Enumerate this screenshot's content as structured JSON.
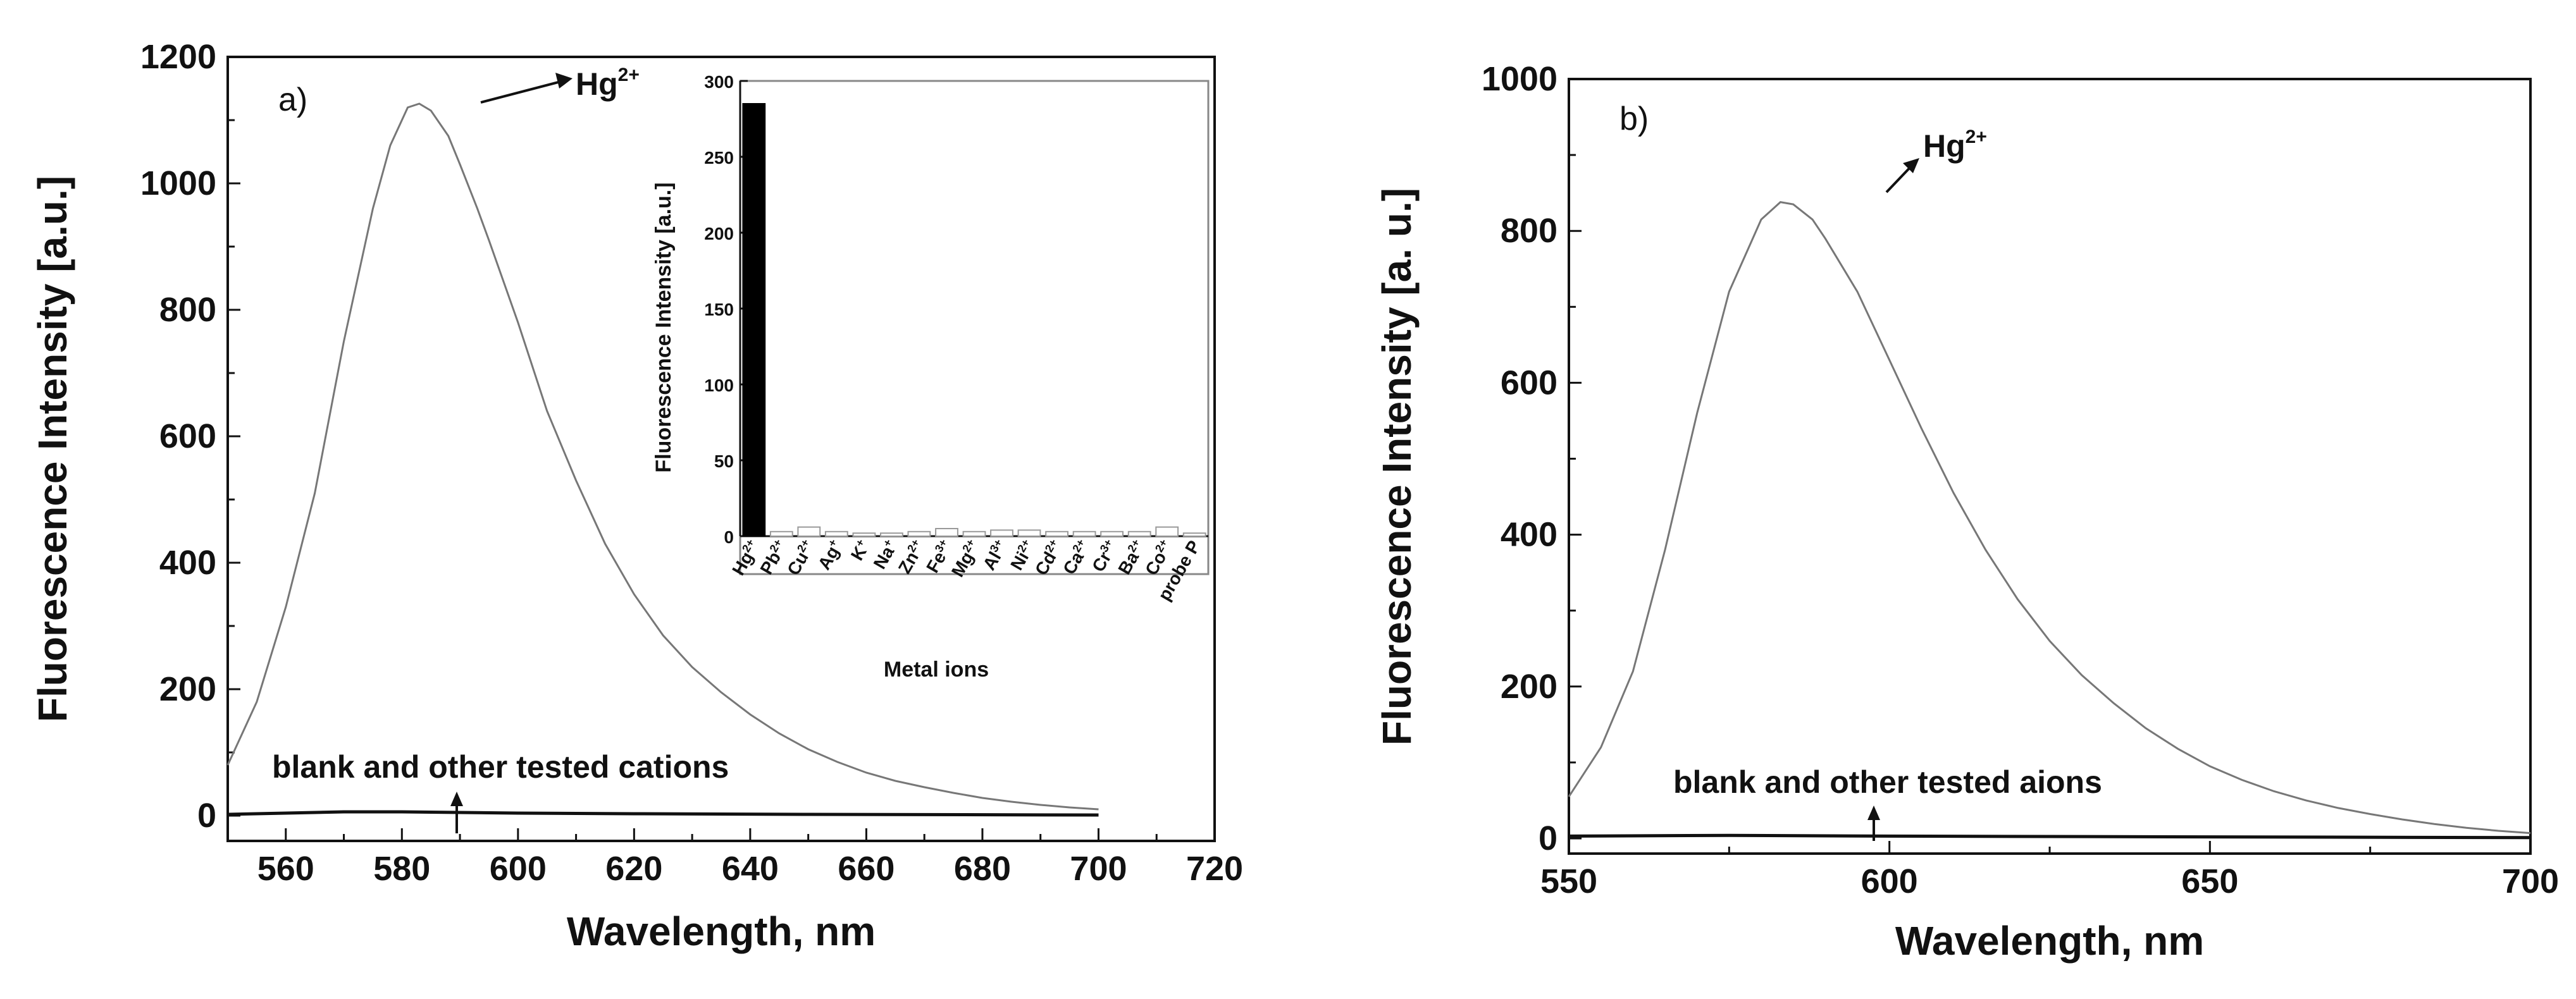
{
  "chart_data": [
    {
      "type": "line",
      "panel_label": "a)",
      "xlabel": "Wavelength, nm",
      "ylabel": "Fluorescence Intensity [a.u.]",
      "xlim": [
        550,
        720
      ],
      "ylim": [
        -40,
        1200
      ],
      "xticks": [
        560,
        580,
        600,
        620,
        640,
        660,
        680,
        700,
        720
      ],
      "yticks": [
        0,
        200,
        400,
        600,
        800,
        1000,
        1200
      ],
      "series": [
        {
          "name": "Hg2+",
          "x": [
            550,
            555,
            560,
            565,
            570,
            575,
            578,
            581,
            583,
            585,
            588,
            590,
            593,
            595,
            600,
            605,
            610,
            615,
            620,
            625,
            630,
            635,
            640,
            645,
            650,
            655,
            660,
            665,
            670,
            675,
            680,
            685,
            690,
            695,
            700
          ],
          "y": [
            80,
            180,
            330,
            510,
            750,
            960,
            1060,
            1120,
            1126,
            1115,
            1075,
            1030,
            960,
            910,
            780,
            640,
            530,
            430,
            350,
            285,
            235,
            195,
            160,
            130,
            105,
            85,
            68,
            55,
            45,
            36,
            28,
            22,
            17,
            13,
            10
          ]
        },
        {
          "name": "blank and other tested cations",
          "x": [
            550,
            560,
            570,
            580,
            590,
            600,
            620,
            650,
            700
          ],
          "y": [
            2,
            4,
            6,
            6,
            5,
            4,
            3,
            2,
            1
          ]
        }
      ],
      "annotations": {
        "peak_label": {
          "base": "Hg",
          "sup": "2+"
        },
        "baseline_label": "blank and other tested cations"
      },
      "inset": {
        "type": "bar",
        "xlabel": "Metal ions",
        "ylabel": "Fluorescence Intensity [a.u.]",
        "ylim": [
          0,
          300
        ],
        "yticks": [
          0,
          50,
          100,
          150,
          200,
          250,
          300
        ],
        "categories": [
          {
            "base": "Hg",
            "sup": "2+"
          },
          {
            "base": "Pb",
            "sup": "2+"
          },
          {
            "base": "Cu",
            "sup": "2+"
          },
          {
            "base": "Ag",
            "sup": "+"
          },
          {
            "base": "K",
            "sup": "+"
          },
          {
            "base": "Na",
            "sup": "+"
          },
          {
            "base": "Zn",
            "sup": "2+"
          },
          {
            "base": "Fe",
            "sup": "3+"
          },
          {
            "base": "Mg",
            "sup": "2+"
          },
          {
            "base": "Al",
            "sup": "3+"
          },
          {
            "base": "Ni",
            "sup": "2+"
          },
          {
            "base": "Cd",
            "sup": "2+"
          },
          {
            "base": "Ca",
            "sup": "2+"
          },
          {
            "base": "Cr",
            "sup": "3+"
          },
          {
            "base": "Ba",
            "sup": "2+"
          },
          {
            "base": "Co",
            "sup": "2+"
          },
          {
            "base": "probe P",
            "sup": ""
          }
        ],
        "values": [
          285,
          3,
          6,
          3,
          2,
          2,
          3,
          5,
          3,
          4,
          4,
          3,
          3,
          3,
          3,
          6,
          2
        ]
      }
    },
    {
      "type": "line",
      "panel_label": "b)",
      "xlabel": "Wavelength, nm",
      "ylabel": "Fluorescence Intensity [a. u.]",
      "xlim": [
        550,
        700
      ],
      "ylim": [
        -20,
        1000
      ],
      "xticks": [
        550,
        600,
        650,
        700
      ],
      "yticks": [
        0,
        200,
        400,
        600,
        800,
        1000
      ],
      "series": [
        {
          "name": "Hg2+",
          "x": [
            550,
            555,
            560,
            565,
            570,
            575,
            580,
            583,
            585,
            588,
            590,
            595,
            600,
            605,
            610,
            615,
            620,
            625,
            630,
            635,
            640,
            645,
            650,
            655,
            660,
            665,
            670,
            675,
            680,
            685,
            690,
            695,
            700
          ],
          "y": [
            55,
            120,
            220,
            380,
            560,
            720,
            815,
            838,
            835,
            815,
            790,
            720,
            630,
            540,
            455,
            380,
            315,
            260,
            215,
            178,
            145,
            118,
            95,
            77,
            62,
            50,
            40,
            32,
            25,
            19,
            14,
            10,
            7
          ]
        },
        {
          "name": "blank and other tested aions",
          "x": [
            550,
            575,
            600,
            650,
            700
          ],
          "y": [
            3,
            4,
            3,
            2,
            1
          ]
        }
      ],
      "annotations": {
        "peak_label": {
          "base": "Hg",
          "sup": "2+"
        },
        "baseline_label": "blank and other tested aions"
      }
    }
  ]
}
